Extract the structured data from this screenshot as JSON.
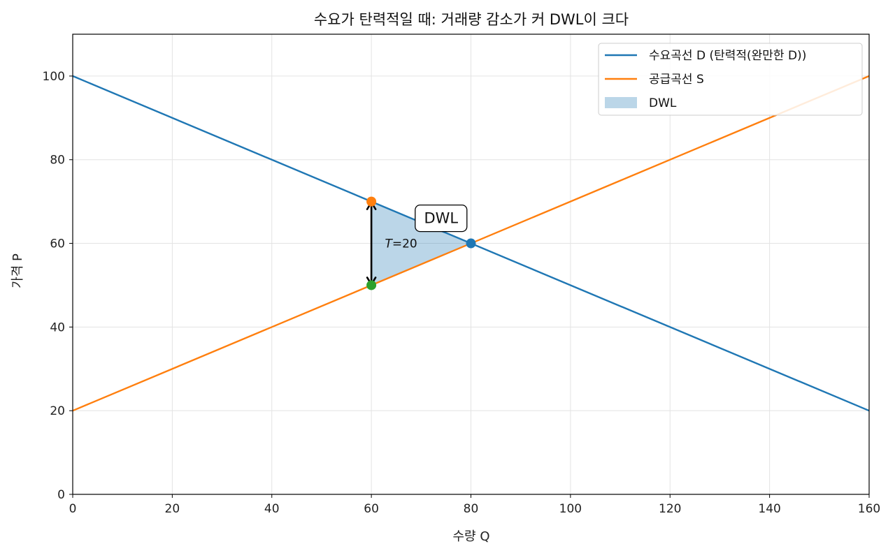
{
  "chart_data": {
    "type": "line",
    "title": "수요가 탄력적일 때: 거래량 감소가 커 DWL이 크다",
    "xlabel": "수량 Q",
    "ylabel": "가격 P",
    "xlim": [
      0,
      160
    ],
    "ylim": [
      0,
      110
    ],
    "xticks": [
      0,
      20,
      40,
      60,
      80,
      100,
      120,
      140,
      160
    ],
    "yticks": [
      0,
      20,
      40,
      60,
      80,
      100
    ],
    "grid": true,
    "legend_position": "top-right",
    "series": [
      {
        "name": "수요곡선 D (탄력적(완만한 D))",
        "color": "#1f77b4",
        "x": [
          0,
          160
        ],
        "y": [
          100,
          20
        ]
      },
      {
        "name": "공급곡선 S",
        "color": "#ff7f0e",
        "x": [
          0,
          160
        ],
        "y": [
          20,
          100
        ]
      }
    ],
    "dwl_area": {
      "name": "DWL",
      "color": "#1f77b4",
      "opacity": 0.3,
      "points": [
        [
          60,
          70
        ],
        [
          80,
          60
        ],
        [
          60,
          50
        ]
      ]
    },
    "points": [
      {
        "x": 80,
        "y": 60,
        "color": "#1f77b4"
      },
      {
        "x": 60,
        "y": 70,
        "color": "#ff7f0e"
      },
      {
        "x": 60,
        "y": 50,
        "color": "#2ca02c"
      }
    ],
    "tax_arrow": {
      "x": 60,
      "y_from": 50,
      "y_to": 70
    },
    "annotations": {
      "dwl_box": {
        "text": "DWL",
        "x": 74,
        "y": 66
      },
      "tax_symbol": "T",
      "tax_value": "=20",
      "tax_x": 63,
      "tax_y": 60
    }
  }
}
